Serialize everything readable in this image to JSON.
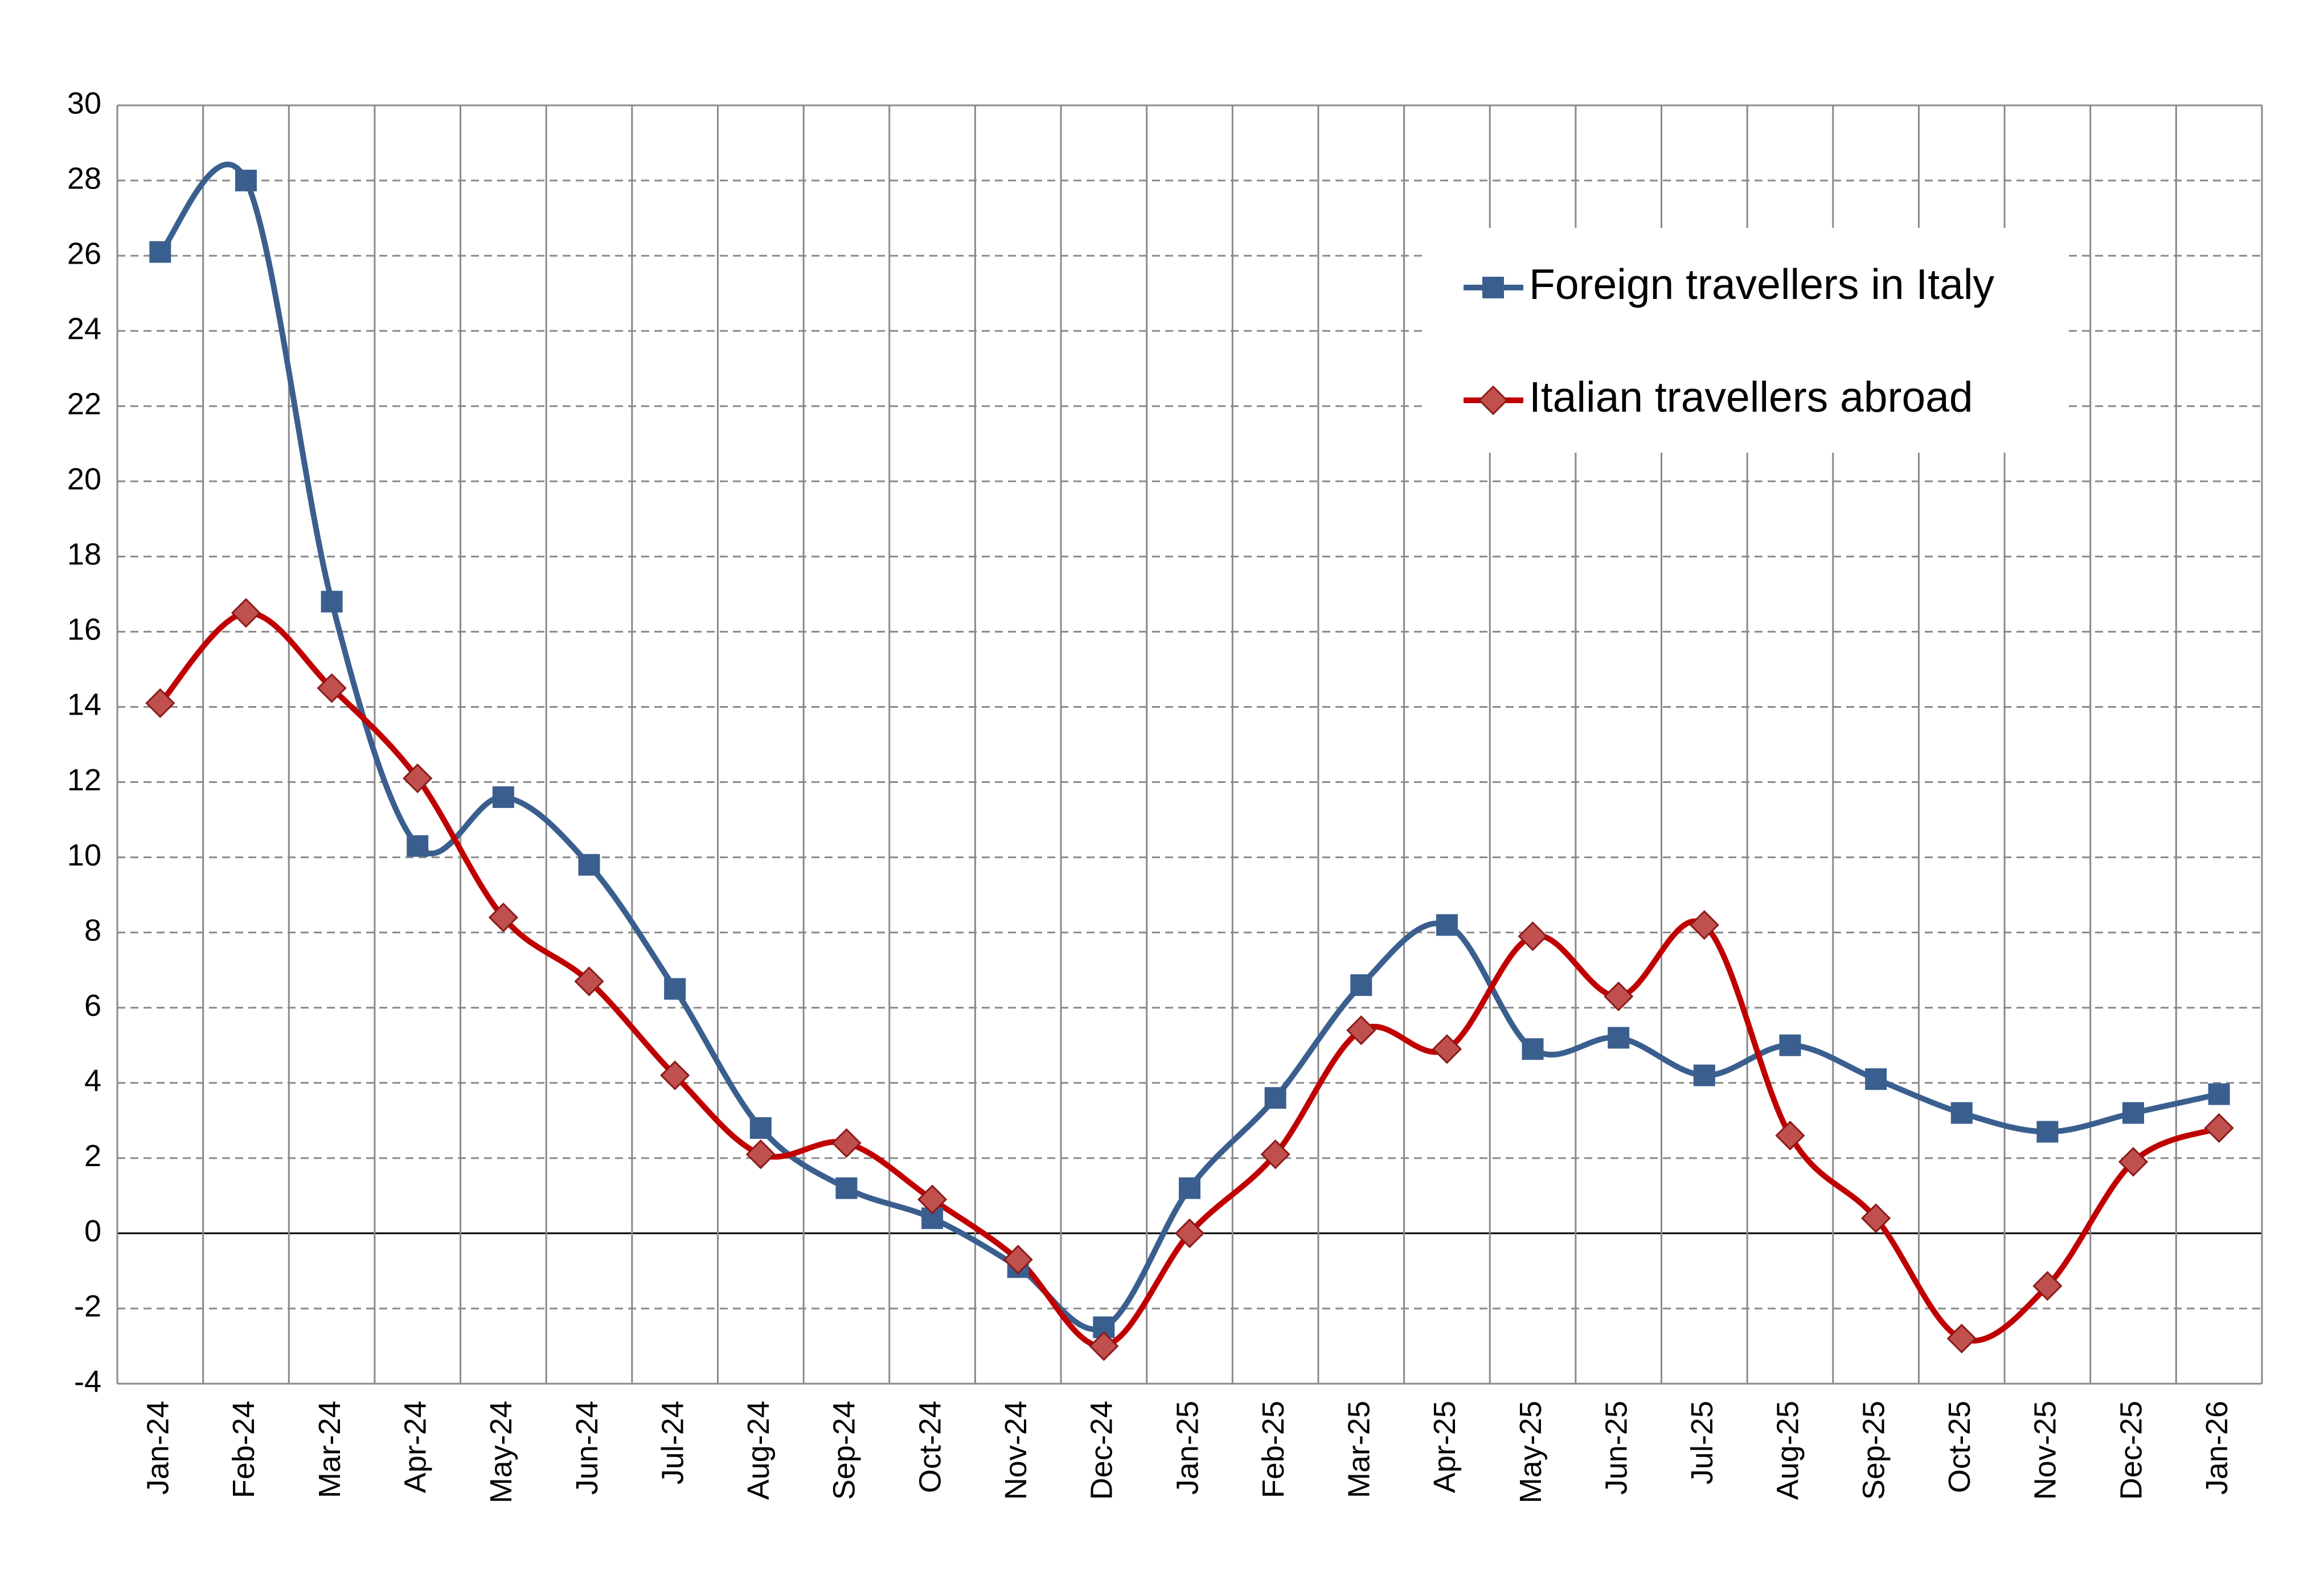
{
  "chart_data": {
    "type": "line",
    "categories": [
      "Jan-24",
      "Feb-24",
      "Mar-24",
      "Apr-24",
      "May-24",
      "Jun-24",
      "Jul-24",
      "Aug-24",
      "Sep-24",
      "Oct-24",
      "Nov-24",
      "Dec-24",
      "Jan-25",
      "Feb-25",
      "Mar-25",
      "Apr-25",
      "May-25",
      "Jun-25",
      "Jul-25",
      "Aug-25",
      "Sep-25",
      "Oct-25",
      "Nov-25",
      "Dec-25",
      "Jan-26"
    ],
    "series": [
      {
        "name": "Foreign travellers in Italy",
        "color": "#3a5f8f",
        "marker": "square",
        "values": [
          26.1,
          28,
          16.8,
          10.3,
          11.6,
          9.8,
          6.5,
          2.8,
          1.2,
          0.4,
          -0.9,
          -2.5,
          1.2,
          3.6,
          6.6,
          8.2,
          4.9,
          5.2,
          4.2,
          5.0,
          4.1,
          3.2,
          2.7,
          3.2,
          3.7
        ]
      },
      {
        "name": "Italian travellers abroad",
        "color": "#c00000",
        "marker": "diamond",
        "values": [
          14.1,
          16.5,
          14.5,
          12.1,
          8.4,
          6.7,
          4.2,
          2.1,
          2.4,
          0.9,
          -0.7,
          -3.0,
          0.0,
          2.1,
          5.4,
          4.9,
          7.9,
          6.3,
          8.2,
          2.6,
          0.4,
          -2.8,
          -1.4,
          1.9,
          2.8
        ]
      }
    ],
    "ylim": [
      -4,
      30
    ],
    "yticks": [
      -4,
      -2,
      0,
      2,
      4,
      6,
      8,
      10,
      12,
      14,
      16,
      18,
      20,
      22,
      24,
      26,
      28,
      30
    ],
    "grid": true,
    "legend": "upper-right"
  }
}
